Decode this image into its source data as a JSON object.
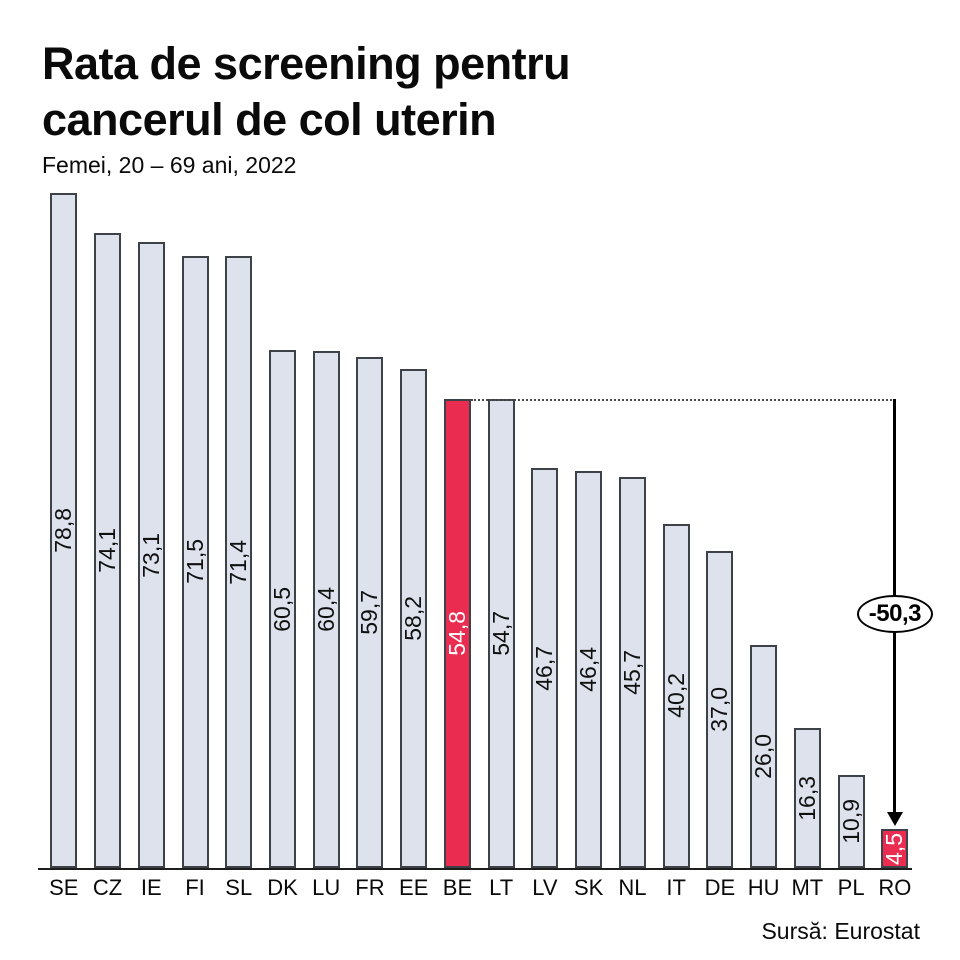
{
  "header": {
    "title_line1": "Rata de screening pentru",
    "title_line2": "cancerul de col uterin",
    "subtitle": "Femei, 20 – 69 ani, 2022"
  },
  "chart_data": {
    "type": "bar",
    "title": "Rata de screening pentru cancerul de col uterin",
    "subtitle": "Femei, 20 – 69 ani, 2022",
    "categories": [
      "SE",
      "CZ",
      "IE",
      "FI",
      "SL",
      "DK",
      "LU",
      "FR",
      "EE",
      "BE",
      "LT",
      "LV",
      "SK",
      "NL",
      "IT",
      "DE",
      "HU",
      "MT",
      "PL",
      "RO"
    ],
    "values": [
      78.8,
      74.1,
      73.1,
      71.5,
      71.4,
      60.5,
      60.4,
      59.7,
      58.2,
      54.8,
      54.7,
      46.7,
      46.4,
      45.7,
      40.2,
      37.0,
      26.0,
      16.3,
      10.9,
      4.5
    ],
    "value_labels": [
      "78,8",
      "74,1",
      "73,1",
      "71,5",
      "71,4",
      "60,5",
      "60,4",
      "59,7",
      "58,2",
      "54,8",
      "54,7",
      "46,7",
      "46,4",
      "45,7",
      "40,2",
      "37,0",
      "26,0",
      "16,3",
      "10,9",
      "4,5"
    ],
    "highlighted": [
      "BE",
      "RO"
    ],
    "annotation": {
      "label": "-50,3",
      "from": "BE",
      "to": "RO"
    },
    "xlabel": "",
    "ylabel": "",
    "ylim": [
      0,
      78.8
    ],
    "grid": false,
    "legend": false,
    "colors": {
      "bar_fill": "#dde2ec",
      "bar_border": "#3d4148",
      "highlight_fill": "#ea2c50",
      "value_on_bar": "#101010",
      "value_on_highlight": "#ffffff",
      "axis": "#1d1d1d"
    }
  },
  "footer": {
    "source": "Sursă: Eurostat"
  }
}
